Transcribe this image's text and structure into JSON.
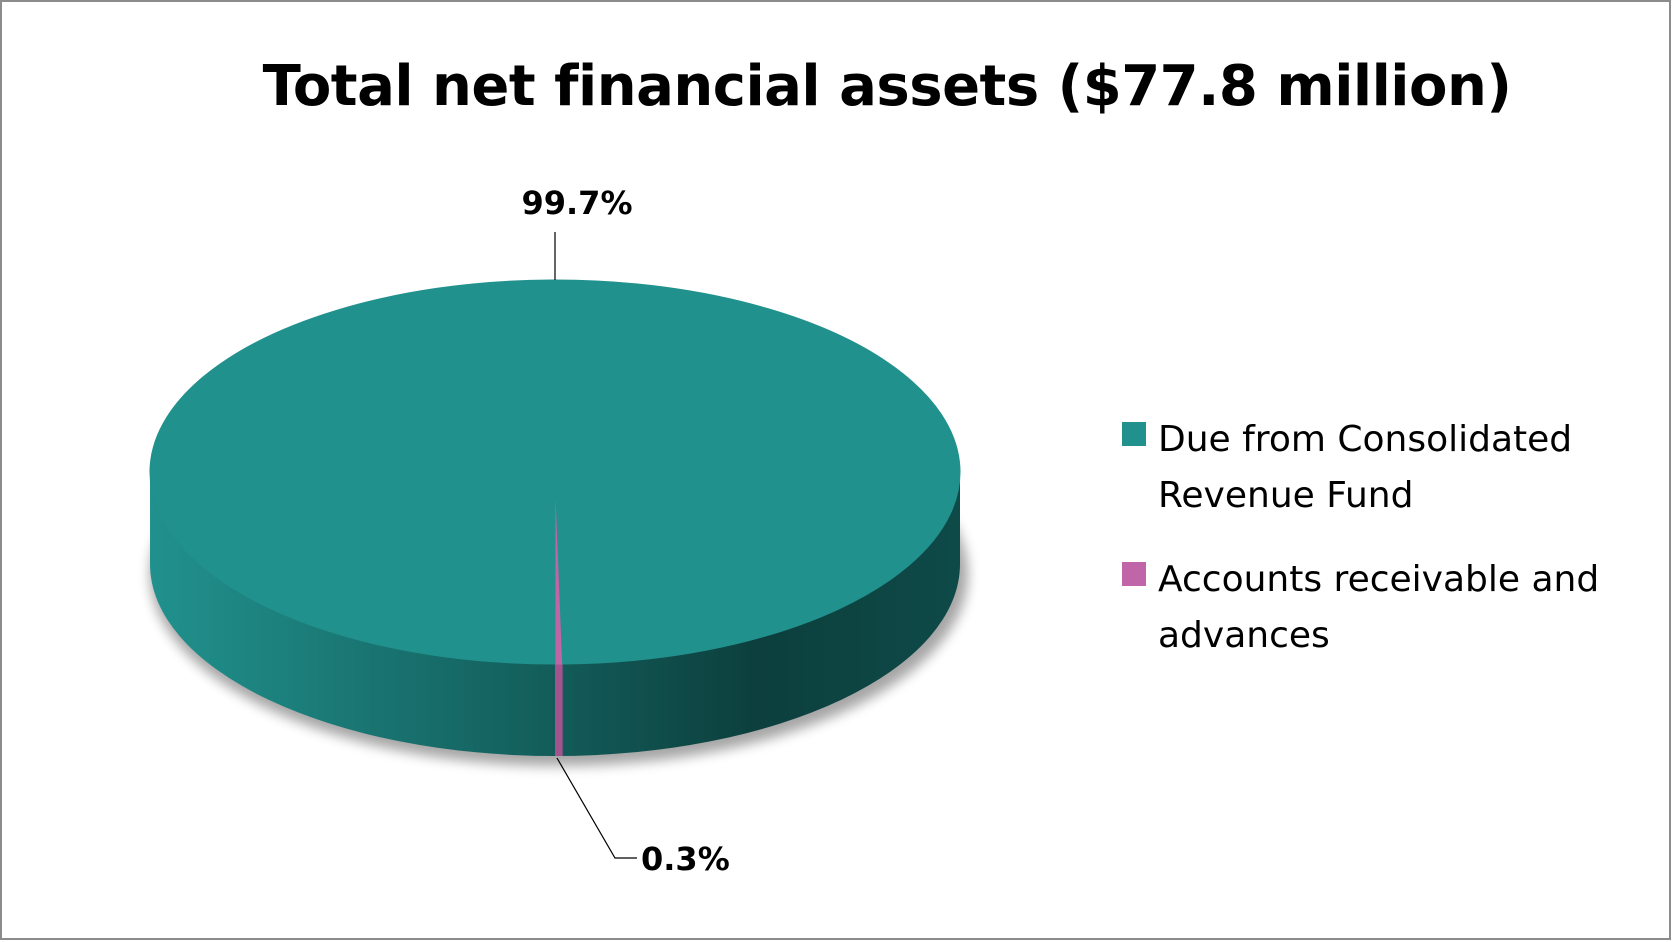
{
  "chart_data": {
    "type": "pie",
    "title": "Total net financial assets ($77.8 million)",
    "slices": [
      {
        "label": "Due from Consolidated Revenue Fund",
        "value": 99.7,
        "display": "99.7%",
        "color": "#21918d"
      },
      {
        "label": "Accounts receivable and advances",
        "value": 0.3,
        "display": "0.3%",
        "color": "#c066a8"
      }
    ],
    "unit": "%",
    "style": "3d",
    "legend_position": "right"
  }
}
